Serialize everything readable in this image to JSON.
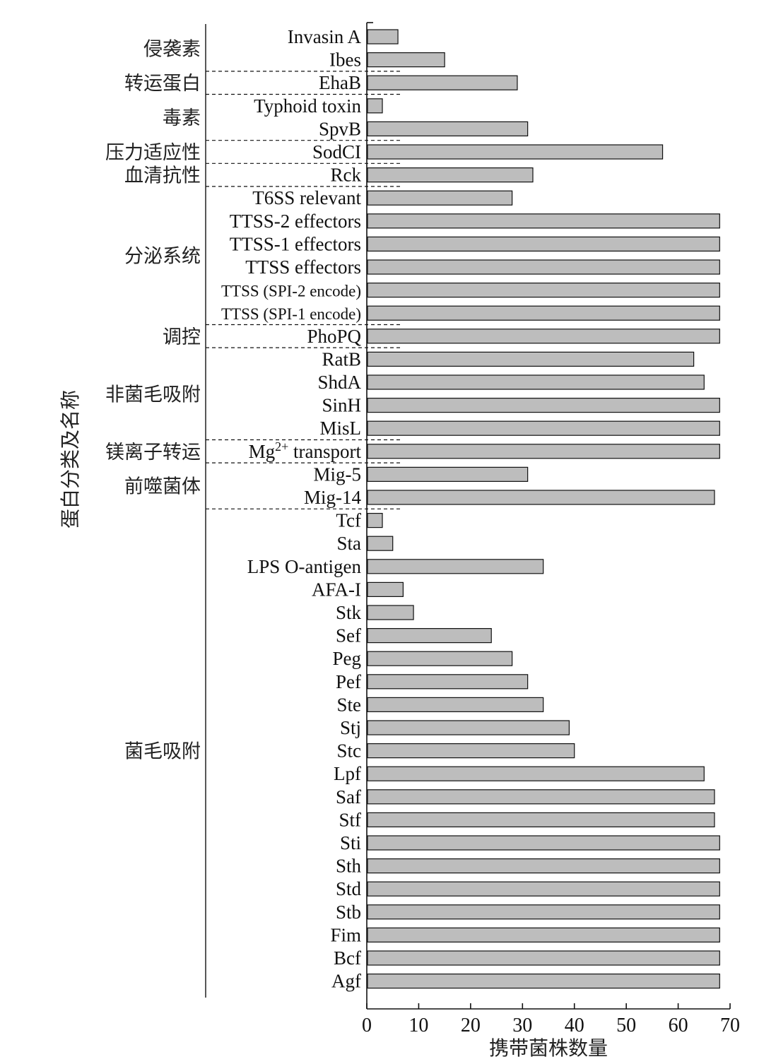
{
  "chart_data": {
    "type": "bar",
    "orientation": "horizontal",
    "xlabel": "携带菌株数量",
    "ylabel": "蛋白分类及名称",
    "xlim": [
      0,
      70
    ],
    "xticks": [
      "0",
      "10",
      "20",
      "30",
      "40",
      "50",
      "60",
      "70"
    ],
    "grid": false,
    "categories": [
      "Invasin A",
      "Ibes",
      "EhaB",
      "Typhoid toxin",
      "SpvB",
      "SodCI",
      "Rck",
      "T6SS relevant",
      "TTSS-2 effectors",
      "TTSS-1 effectors",
      "TTSS effectors",
      "TTSS (SPI-2 encode)",
      "TTSS (SPI-1 encode)",
      "PhoPQ",
      "RatB",
      "ShdA",
      "SinH",
      "MisL",
      "Mg2+ transport",
      "Mig-5",
      "Mig-14",
      "Tcf",
      "Sta",
      "LPS O-antigen",
      "AFA-I",
      "Stk",
      "Sef",
      "Peg",
      "Pef",
      "Ste",
      "Stj",
      "Stc",
      "Lpf",
      "Saf",
      "Stf",
      "Sti",
      "Sth",
      "Std",
      "Stb",
      "Fim",
      "Bcf",
      "Agf"
    ],
    "values": [
      6,
      15,
      29,
      3,
      31,
      57,
      32,
      28,
      68,
      68,
      68,
      68,
      68,
      68,
      63,
      65,
      68,
      68,
      68,
      31,
      67,
      3,
      5,
      34,
      7,
      9,
      24,
      28,
      31,
      34,
      39,
      40,
      65,
      67,
      67,
      68,
      68,
      68,
      68,
      68,
      68,
      68
    ],
    "groups": [
      {
        "name": "侵袭素",
        "start": 0,
        "end": 1
      },
      {
        "name": "转运蛋白",
        "start": 2,
        "end": 2
      },
      {
        "name": "毒素",
        "start": 3,
        "end": 4
      },
      {
        "name": "压力适应性",
        "start": 5,
        "end": 5
      },
      {
        "name": "血清抗性",
        "start": 6,
        "end": 6
      },
      {
        "name": "分泌系统",
        "start": 7,
        "end": 12
      },
      {
        "name": "调控",
        "start": 13,
        "end": 13
      },
      {
        "name": "非菌毛吸附",
        "start": 14,
        "end": 17
      },
      {
        "name": "镁离子转运",
        "start": 18,
        "end": 18
      },
      {
        "name": "前噬菌体",
        "start": 19,
        "end": 20
      },
      {
        "name": "菌毛吸附",
        "start": 21,
        "end": 41
      }
    ],
    "colors": {
      "bar_fill": "#bdbdbd",
      "bar_stroke": "#111111",
      "text": "#111111"
    }
  }
}
